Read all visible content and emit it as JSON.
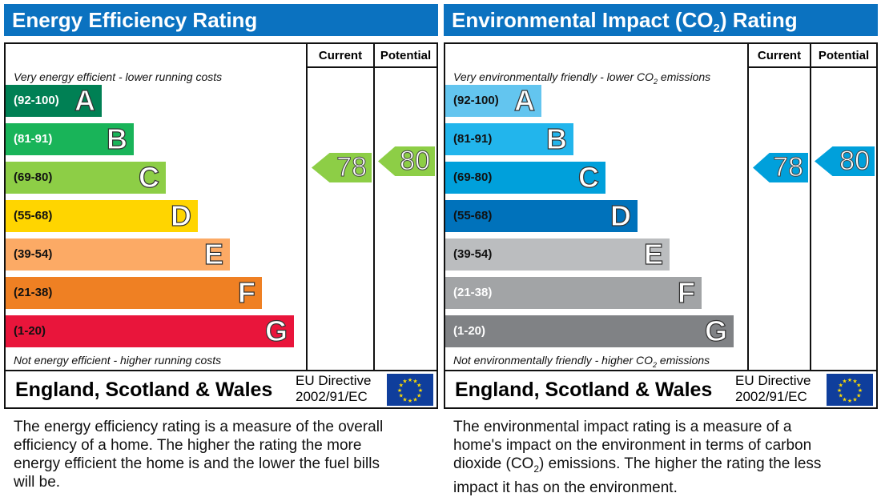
{
  "panels": [
    {
      "title": "Energy Efficiency Rating",
      "title_sub": "",
      "title_after": "",
      "col_current": "Current",
      "col_potential": "Potential",
      "top_caption": "Very energy efficient - lower running costs",
      "top_caption_sub": "",
      "top_caption_after": "",
      "bottom_caption": "Not energy efficient - higher running costs",
      "bottom_caption_sub": "",
      "bottom_caption_after": "",
      "region": "England, Scotland & Wales",
      "directive_line1": "EU Directive",
      "directive_line2": "2002/91/EC",
      "description": "The energy efficiency rating is a measure of the overall efficiency of a home. The higher the rating the more energy efficient the home is and the lower the fuel bills will be.",
      "description_sub": "",
      "description_after": "",
      "bands": [
        {
          "range": "(92-100)",
          "letter": "A",
          "color": "#008054",
          "text": "#ffffff"
        },
        {
          "range": "(81-91)",
          "letter": "B",
          "color": "#19b459",
          "text": "#ffffff"
        },
        {
          "range": "(69-80)",
          "letter": "C",
          "color": "#8dce46",
          "text": "#111111"
        },
        {
          "range": "(55-68)",
          "letter": "D",
          "color": "#ffd500",
          "text": "#111111"
        },
        {
          "range": "(39-54)",
          "letter": "E",
          "color": "#fcaa65",
          "text": "#111111"
        },
        {
          "range": "(21-38)",
          "letter": "F",
          "color": "#ef8023",
          "text": "#111111"
        },
        {
          "range": "(1-20)",
          "letter": "G",
          "color": "#e9153b",
          "text": "#111111"
        }
      ],
      "current": {
        "value": "78",
        "band": "C",
        "color": "#8dce46"
      },
      "potential": {
        "value": "80",
        "band": "C",
        "color": "#8dce46"
      }
    },
    {
      "title": "Environmental Impact (CO",
      "title_sub": "2",
      "title_after": ") Rating",
      "col_current": "Current",
      "col_potential": "Potential",
      "top_caption": "Very environmentally friendly - lower CO",
      "top_caption_sub": "2",
      "top_caption_after": " emissions",
      "bottom_caption": "Not environmentally friendly - higher CO",
      "bottom_caption_sub": "2",
      "bottom_caption_after": " emissions",
      "region": "England, Scotland & Wales",
      "directive_line1": "EU Directive",
      "directive_line2": "2002/91/EC",
      "description": "The environmental impact rating is a measure of a home's impact on the environment in terms of carbon dioxide (CO",
      "description_sub": "2",
      "description_after": ") emissions. The higher the rating the less impact it has on the environment.",
      "bands": [
        {
          "range": "(92-100)",
          "letter": "A",
          "color": "#63c5ef",
          "text": "#111111"
        },
        {
          "range": "(81-91)",
          "letter": "B",
          "color": "#22b5ec",
          "text": "#111111"
        },
        {
          "range": "(69-80)",
          "letter": "C",
          "color": "#00a0db",
          "text": "#111111"
        },
        {
          "range": "(55-68)",
          "letter": "D",
          "color": "#0072bb",
          "text": "#111111"
        },
        {
          "range": "(39-54)",
          "letter": "E",
          "color": "#bbbdbf",
          "text": "#111111"
        },
        {
          "range": "(21-38)",
          "letter": "F",
          "color": "#a2a4a6",
          "text": "#ffffff"
        },
        {
          "range": "(1-20)",
          "letter": "G",
          "color": "#808285",
          "text": "#ffffff"
        }
      ],
      "current": {
        "value": "78",
        "band": "C",
        "color": "#00a0db"
      },
      "potential": {
        "value": "80",
        "band": "C",
        "color": "#00a0db"
      }
    }
  ],
  "chart_data": [
    {
      "type": "bar",
      "title": "Energy Efficiency Rating",
      "categories": [
        "A",
        "B",
        "C",
        "D",
        "E",
        "F",
        "G"
      ],
      "current": 78,
      "potential": 80
    },
    {
      "type": "bar",
      "title": "Environmental Impact (CO2) Rating",
      "categories": [
        "A",
        "B",
        "C",
        "D",
        "E",
        "F",
        "G"
      ],
      "current": 78,
      "potential": 80
    }
  ]
}
